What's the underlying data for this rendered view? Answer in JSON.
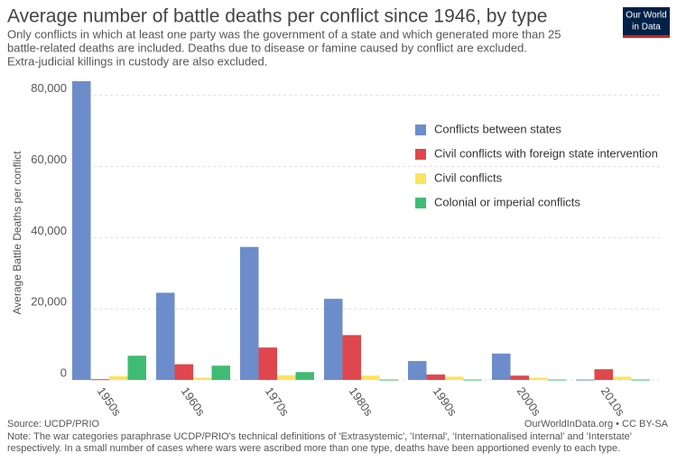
{
  "chart_data": {
    "type": "bar",
    "title": "Average number of battle deaths per conflict since 1946, by type",
    "subtitle": [
      "Only conflicts in which at least one party was the government of a state and which generated more than 25",
      "battle-related deaths are included. Deaths due to disease or famine caused by conflict are excluded.",
      "Extra-judicial killings in custody are also excluded."
    ],
    "logo": [
      "Our World",
      "in Data"
    ],
    "y_label": "Average Battle Deaths per conflict",
    "categories": [
      "1950s",
      "1960s",
      "1970s",
      "1980s",
      "1990s",
      "2000s",
      "2010s"
    ],
    "series": [
      {
        "name": "Conflicts between states",
        "color": "#6d8ccb",
        "values": [
          84000,
          24500,
          37400,
          22800,
          5300,
          7400,
          100
        ]
      },
      {
        "name": "Civil conflicts with foreign state intervention",
        "color": "#e0474c",
        "values": [
          200,
          4400,
          9100,
          12600,
          1500,
          1200,
          3000
        ]
      },
      {
        "name": "Civil conflicts",
        "color": "#fce35c",
        "values": [
          1000,
          600,
          1300,
          1200,
          900,
          600,
          900
        ]
      },
      {
        "name": "Colonial or imperial conflicts",
        "color": "#3fbc73",
        "values": [
          6800,
          4000,
          2200,
          100,
          100,
          100,
          100
        ]
      }
    ],
    "ylim": [
      0,
      84000
    ],
    "yticks": [
      0,
      {
        "value": 20000,
        "label": "20,000"
      },
      {
        "value": 40000,
        "label": "40,000"
      },
      {
        "value": 60000,
        "label": "60,000"
      },
      {
        "value": 80000,
        "label": "80,000"
      }
    ],
    "grid": true,
    "legend": "right",
    "source": "Source: UCDP/PRIO",
    "credit": "OurWorldInData.org • CC BY-SA",
    "note": [
      "Note: The war categories paraphrase UCDP/PRIO's technical definitions of 'Extrasystemic', 'Internal', 'Internationalised internal' and 'Interstate'",
      "respectively. In a small number of cases where wars were ascribed more than one type, deaths have been apportioned evenly to each type."
    ]
  }
}
